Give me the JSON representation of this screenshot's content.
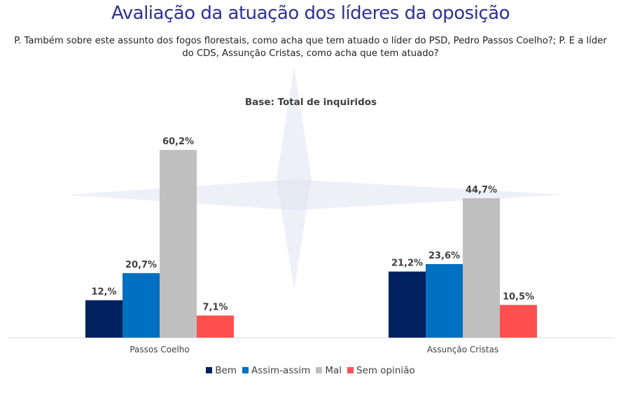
{
  "title": "Avaliação da atuação dos líderes da oposição",
  "question": "P. Também sobre este assunto dos fogos florestais, como acha que tem atuado o líder do PSD, Pedro Passos Coelho?; P. E a líder do CDS, Assunção Cristas, como acha que tem atuado?",
  "chart_data": {
    "type": "bar",
    "subtitle": "Base: Total de inquiridos",
    "categories": [
      "Passos Coelho",
      "Assunção Cristas"
    ],
    "series": [
      {
        "name": "Bem",
        "color": "#002060",
        "values": [
          12.0,
          21.2
        ],
        "labels": [
          "12,%",
          "21,2%"
        ]
      },
      {
        "name": "Assim-assim",
        "color": "#0070c0",
        "values": [
          20.7,
          23.6
        ],
        "labels": [
          "20,7%",
          "23,6%"
        ]
      },
      {
        "name": "Mal",
        "color": "#bfbfbf",
        "values": [
          60.2,
          44.7
        ],
        "labels": [
          "60,2%",
          "44,7%"
        ]
      },
      {
        "name": "Sem opinião",
        "color": "#ff5050",
        "values": [
          7.1,
          10.5
        ],
        "labels": [
          "7,1%",
          "10,5%"
        ]
      }
    ],
    "ylim": [
      0,
      60.2
    ],
    "grid": false,
    "legend_position": "bottom"
  }
}
